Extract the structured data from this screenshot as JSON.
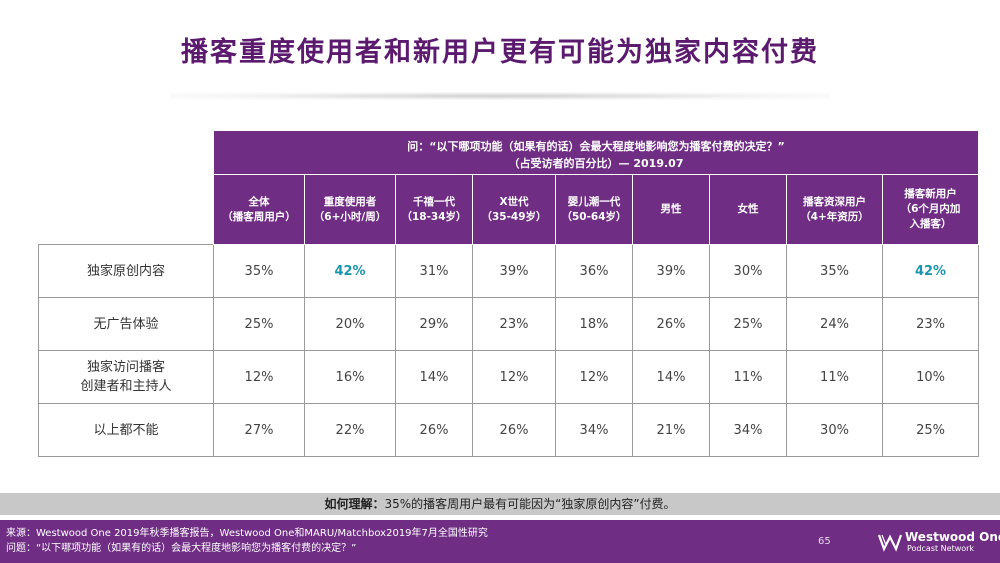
{
  "title": "播客重度使用者和新用户更有可能为独家内容付费",
  "question": {
    "line1": "问：“以下哪项功能（如果有的话）会最大程度地影响您为播客付费的决定？”",
    "line2": "（占受访者的百分比）— 2019.07"
  },
  "columns": [
    {
      "l1": "全体",
      "l2": "（播客周用户）",
      "l3": ""
    },
    {
      "l1": "重度使用者",
      "l2": "（6+小时/周）",
      "l3": ""
    },
    {
      "l1": "千禧一代",
      "l2": "（18-34岁）",
      "l3": ""
    },
    {
      "l1": "X世代",
      "l2": "（35-49岁）",
      "l3": ""
    },
    {
      "l1": "婴儿潮一代",
      "l2": "（50-64岁）",
      "l3": ""
    },
    {
      "l1": "男性",
      "l2": "",
      "l3": ""
    },
    {
      "l1": "女性",
      "l2": "",
      "l3": ""
    },
    {
      "l1": "播客资深用户",
      "l2": "（4+年资历）",
      "l3": ""
    },
    {
      "l1": "播客新用户",
      "l2": "（6个月内加",
      "l3": "入播客）"
    }
  ],
  "rows": [
    {
      "l1": "独家原创内容",
      "l2": "",
      "values": [
        "35%",
        "42%",
        "31%",
        "39%",
        "36%",
        "39%",
        "30%",
        "35%",
        "42%"
      ]
    },
    {
      "l1": "无广告体验",
      "l2": "",
      "values": [
        "25%",
        "20%",
        "29%",
        "23%",
        "18%",
        "26%",
        "25%",
        "24%",
        "23%"
      ]
    },
    {
      "l1": "独家访问播客",
      "l2": "创建者和主持人",
      "values": [
        "12%",
        "16%",
        "14%",
        "12%",
        "12%",
        "14%",
        "11%",
        "11%",
        "10%"
      ]
    },
    {
      "l1": "以上都不能",
      "l2": "",
      "values": [
        "27%",
        "22%",
        "26%",
        "26%",
        "34%",
        "21%",
        "34%",
        "30%",
        "25%"
      ]
    }
  ],
  "insight": {
    "label": "如何理解：",
    "text": "35%的播客周用户最有可能因为“独家原创内容”付费。"
  },
  "footer": {
    "source": "来源：Westwood One 2019年秋季播客报告，Westwood One和MARU/Matchbox2019年7月全国性研究",
    "question": "问题：“以下哪项功能（如果有的话）会最大程度地影响您为播客付费的决定？”",
    "page": "65",
    "logo_line1": "Westwood One",
    "logo_line2": "Podcast Network"
  },
  "colors": {
    "purple": "#6f2d84",
    "highlight": "#1b94ad",
    "insight_bg": "#c8c8c8"
  }
}
